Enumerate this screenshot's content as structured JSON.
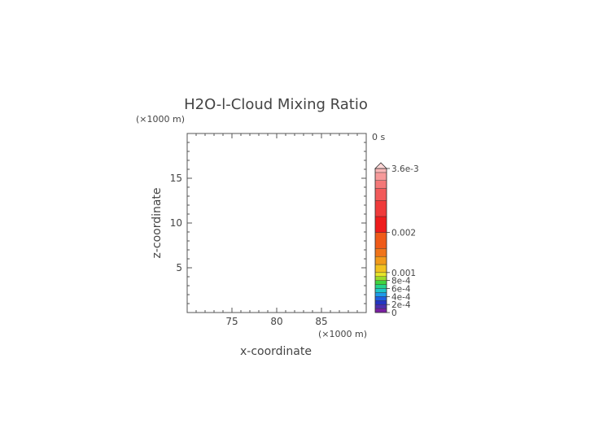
{
  "chart_data": {
    "type": "heatmap",
    "title": "H2O-l-Cloud Mixing Ratio",
    "time_label": "0 s",
    "x_unit": "(×1000 m)",
    "y_unit": "(×1000 m)",
    "xlabel": "x-coordinate",
    "ylabel": "z-coordinate",
    "xlim": [
      70,
      90
    ],
    "ylim": [
      0,
      20
    ],
    "x_ticks": [
      75,
      80,
      85
    ],
    "y_ticks": [
      5,
      10,
      15
    ],
    "data": [],
    "colorbar": {
      "min": 0,
      "max": 0.0036,
      "labels": [
        {
          "value": 0.0036,
          "text": "3.6e-3"
        },
        {
          "value": 0.002,
          "text": "0.002"
        },
        {
          "value": 0.001,
          "text": "0.001"
        },
        {
          "value": 0.0008,
          "text": "8e-4"
        },
        {
          "value": 0.0006,
          "text": "6e-4"
        },
        {
          "value": 0.0004,
          "text": "4e-4"
        },
        {
          "value": 0.0002,
          "text": "2e-4"
        },
        {
          "value": 0,
          "text": "0"
        }
      ],
      "extend_arrow": "top",
      "colors": [
        "#7a1fa2",
        "#4b2fb0",
        "#2335c4",
        "#1f5fe0",
        "#1f9be8",
        "#20c6c8",
        "#24d28a",
        "#3fd43f",
        "#9bdc2a",
        "#e6e62a",
        "#f2c21f",
        "#f29a1a",
        "#f0741a",
        "#ef5a18",
        "#ee1c1c",
        "#ef3a3a",
        "#f25a5a",
        "#f47878",
        "#f79a9a",
        "#fab6b6"
      ],
      "levels": [
        0,
        0.0001,
        0.0002,
        0.0003,
        0.0004,
        0.0005,
        0.0006,
        0.0007,
        0.0008,
        0.0009,
        0.001,
        0.0012,
        0.0014,
        0.0016,
        0.002,
        0.0024,
        0.0028,
        0.0031,
        0.0033,
        0.0035,
        0.0036
      ]
    }
  }
}
